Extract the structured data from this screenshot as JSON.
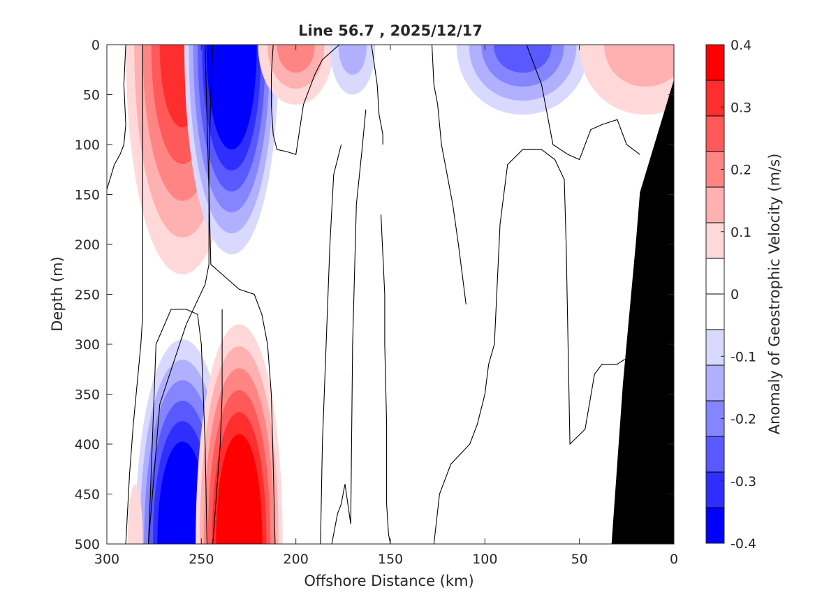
{
  "chart_data": {
    "type": "heatmap",
    "subtype": "filled-contour",
    "title": "Line 56.7 , 2025/12/17",
    "xlabel": "Offshore Distance (km)",
    "ylabel": "Depth (m)",
    "colorbar_label": "Anomaly of Geostrophic Velocity (m/s)",
    "xlim": [
      300,
      0
    ],
    "ylim": [
      0,
      500
    ],
    "x_ticks": [
      300,
      250,
      200,
      150,
      100,
      50,
      0
    ],
    "y_ticks": [
      0,
      50,
      100,
      150,
      200,
      250,
      300,
      350,
      400,
      450,
      500
    ],
    "colorbar": {
      "range": [
        -0.4,
        0.4
      ],
      "levels": [
        -0.4,
        -0.35,
        -0.3,
        -0.25,
        -0.2,
        -0.15,
        -0.1,
        -0.05,
        0,
        0.05,
        0.1,
        0.15,
        0.2,
        0.25,
        0.3,
        0.35,
        0.4
      ],
      "tick_labels": [
        "0.4",
        "0.3",
        "0.2",
        "0.1",
        "0",
        "-0.1",
        "-0.2",
        "-0.3",
        "-0.4"
      ],
      "tick_values": [
        0.4,
        0.3,
        0.2,
        0.1,
        0,
        -0.1,
        -0.2,
        -0.3,
        -0.4
      ],
      "colors_top_to_bottom": [
        "#ff0000",
        "#ff2e2e",
        "#ff5959",
        "#ff8585",
        "#ffb0b0",
        "#ffd9d9",
        "#ffffff",
        "#ffffff",
        "#d9d9ff",
        "#b0b0ff",
        "#8585ff",
        "#5959ff",
        "#2e2eff",
        "#0000ff"
      ]
    },
    "anomalies": [
      {
        "name": "positive core 260 km",
        "x_center": 260,
        "depth_top": 0,
        "depth_bottom": 230,
        "x_halfwidth": 30,
        "peak": 0.27
      },
      {
        "name": "negative core 235 km",
        "x_center": 234,
        "depth_top": 0,
        "depth_bottom": 210,
        "x_halfwidth": 25,
        "peak": -0.38
      },
      {
        "name": "positive patch 200 km",
        "x_center": 200,
        "depth_top": 0,
        "depth_bottom": 60,
        "x_halfwidth": 20,
        "peak": 0.13
      },
      {
        "name": "negative patch 170 km",
        "x_center": 170,
        "depth_top": 0,
        "depth_bottom": 50,
        "x_halfwidth": 12,
        "peak": -0.12
      },
      {
        "name": "negative patch 80 km",
        "x_center": 80,
        "depth_top": 0,
        "depth_bottom": 70,
        "x_halfwidth": 35,
        "peak": -0.2
      },
      {
        "name": "positive patch 10 km",
        "x_center": 15,
        "depth_top": 0,
        "depth_bottom": 70,
        "x_halfwidth": 35,
        "peak": 0.12
      },
      {
        "name": "negative deep core 260 km",
        "x_center": 260,
        "depth_top": 295,
        "depth_bottom": 500,
        "x_halfwidth": 25,
        "peak": -0.38
      },
      {
        "name": "positive deep core 230 km",
        "x_center": 230,
        "depth_top": 280,
        "depth_bottom": 500,
        "x_halfwidth": 23,
        "peak": 0.38
      },
      {
        "name": "positive deep patch 285 km",
        "x_center": 285,
        "depth_top": 440,
        "depth_bottom": 500,
        "x_halfwidth": 4,
        "peak": 0.07
      }
    ],
    "bathymetry": {
      "description": "seafloor (black)",
      "x": [
        33,
        27,
        20,
        18,
        0
      ],
      "depth": [
        500,
        340,
        195,
        148,
        35
      ]
    },
    "zero_contours": [
      {
        "x": [
          300,
          296,
          293,
          291,
          290,
          291,
          290
        ],
        "depth": [
          145,
          120,
          110,
          100,
          80,
          40,
          0
        ]
      },
      {
        "x": [
          290,
          288,
          286,
          284,
          282,
          281,
          281,
          281
        ],
        "depth": [
          500,
          430,
          380,
          340,
          300,
          270,
          250,
          0
        ]
      },
      {
        "x": [
          244,
          242,
          240,
          239,
          239,
          239
        ],
        "depth": [
          500,
          450,
          400,
          350,
          300,
          265
        ]
      },
      {
        "x": [
          278,
          277,
          276,
          275,
          274,
          266,
          258,
          252,
          250,
          249,
          248,
          247
        ],
        "depth": [
          500,
          450,
          400,
          350,
          300,
          265,
          265,
          270,
          300,
          350,
          400,
          500
        ]
      },
      {
        "x": [
          244,
          245,
          246,
          246,
          246,
          248,
          253,
          258,
          265,
          272,
          278
        ],
        "depth": [
          0,
          50,
          120,
          180,
          220,
          240,
          260,
          280,
          320,
          360,
          500
        ]
      },
      {
        "x": [
          248,
          245,
          230,
          222,
          218,
          215,
          213,
          212,
          211
        ],
        "depth": [
          0,
          220,
          245,
          250,
          270,
          300,
          350,
          420,
          500
        ]
      },
      {
        "x": [
          212,
          213,
          213,
          212,
          210,
          205,
          200,
          196,
          190,
          186,
          180,
          177
        ],
        "depth": [
          0,
          30,
          60,
          90,
          105,
          107,
          110,
          60,
          30,
          15,
          5,
          0
        ]
      },
      {
        "x": [
          160,
          157,
          156,
          155,
          154,
          154
        ],
        "depth": [
          0,
          40,
          70,
          80,
          90,
          100
        ]
      },
      {
        "x": [
          187,
          186,
          184,
          182,
          180,
          176
        ],
        "depth": [
          500,
          400,
          300,
          200,
          130,
          100
        ]
      },
      {
        "x": [
          181,
          178,
          176,
          174,
          171,
          170,
          168,
          165,
          163
        ],
        "depth": [
          500,
          470,
          460,
          440,
          480,
          300,
          160,
          105,
          65
        ]
      },
      {
        "x": [
          155,
          154,
          153,
          153,
          152,
          152,
          152,
          151,
          150
        ],
        "depth": [
          170,
          210,
          250,
          300,
          380,
          420,
          460,
          490,
          500
        ]
      },
      {
        "x": [
          128,
          127,
          125,
          123,
          120,
          117,
          114,
          112,
          110
        ],
        "depth": [
          0,
          40,
          60,
          100,
          130,
          160,
          200,
          230,
          260
        ]
      },
      {
        "x": [
          127,
          124,
          118,
          108,
          104,
          100,
          98,
          95,
          92,
          88,
          80,
          70,
          63,
          58,
          57,
          55,
          47,
          42,
          38,
          30,
          26
        ],
        "depth": [
          500,
          450,
          420,
          400,
          380,
          350,
          320,
          300,
          180,
          120,
          105,
          105,
          115,
          135,
          200,
          400,
          385,
          330,
          320,
          320,
          315
        ]
      },
      {
        "x": [
          78,
          74,
          70,
          64,
          56,
          50,
          44,
          38,
          30,
          25,
          18
        ],
        "depth": [
          0,
          20,
          40,
          100,
          110,
          115,
          85,
          80,
          75,
          100,
          110
        ]
      }
    ]
  }
}
